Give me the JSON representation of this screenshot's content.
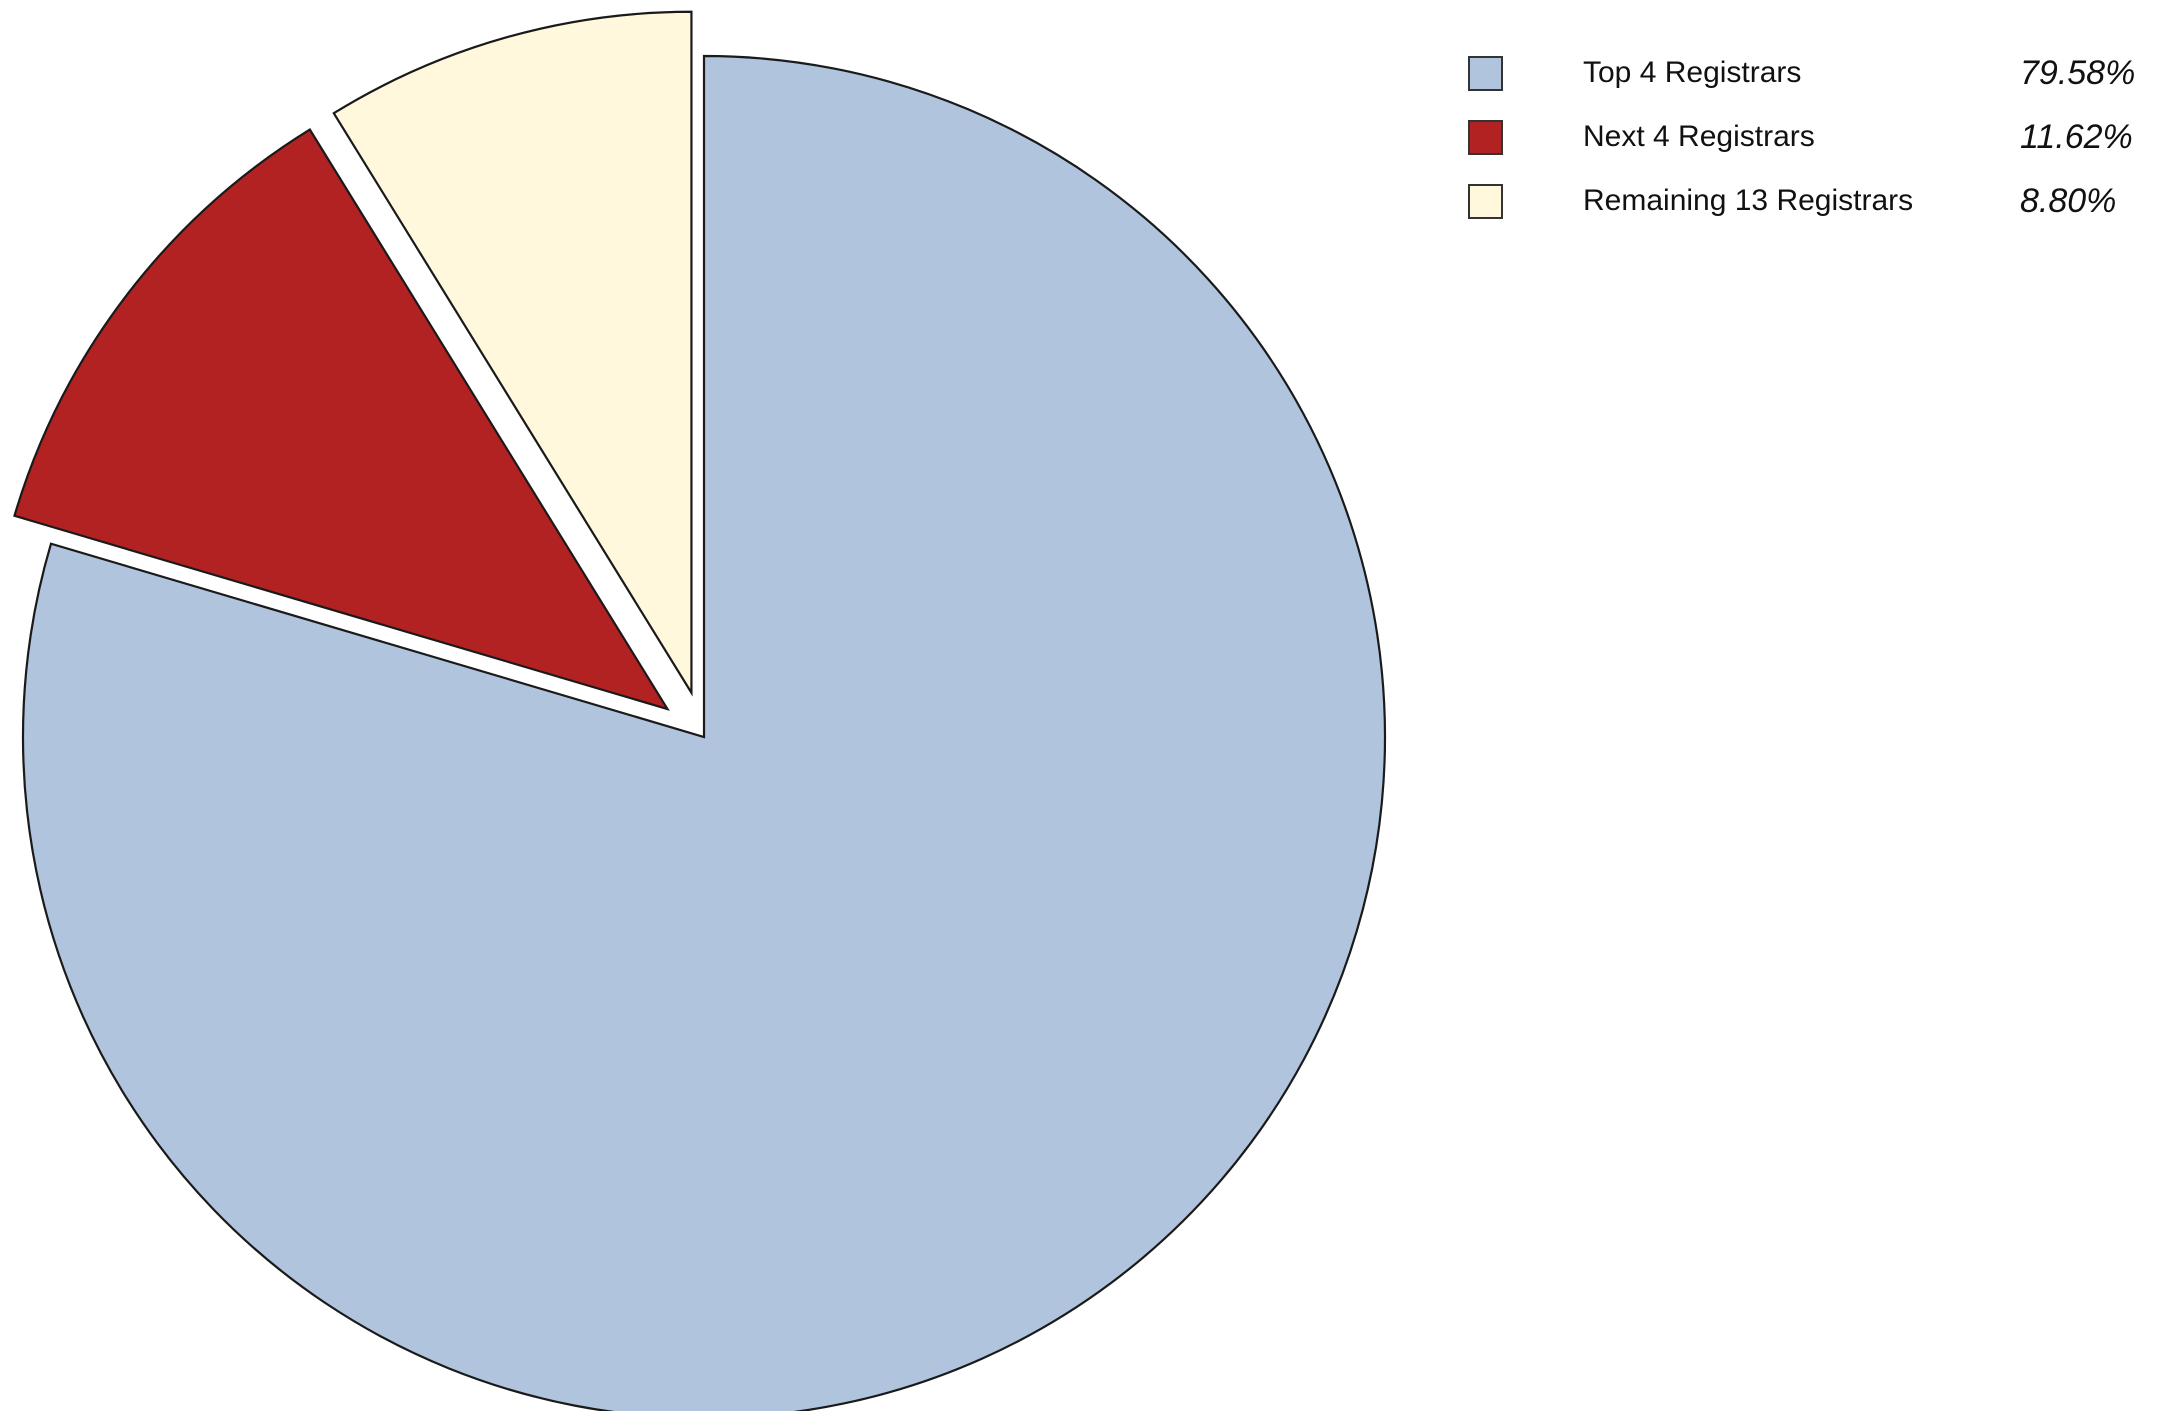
{
  "chart_data": {
    "type": "pie",
    "title": "",
    "start_angle_deg": 90,
    "direction": "clockwise",
    "exploded": [
      "Next 4 Registrars",
      "Remaining 13 Registrars"
    ],
    "legend_position": "top-right",
    "slices": [
      {
        "label": "Top 4 Registrars",
        "value": 79.58,
        "display": "79.58%",
        "color": "#b0c4de"
      },
      {
        "label": "Next 4 Registrars",
        "value": 11.62,
        "display": "11.62%",
        "color": "#b22222"
      },
      {
        "label": "Remaining 13 Registrars",
        "value": 8.8,
        "display": "8.80%",
        "color": "#fff8dc"
      }
    ]
  }
}
